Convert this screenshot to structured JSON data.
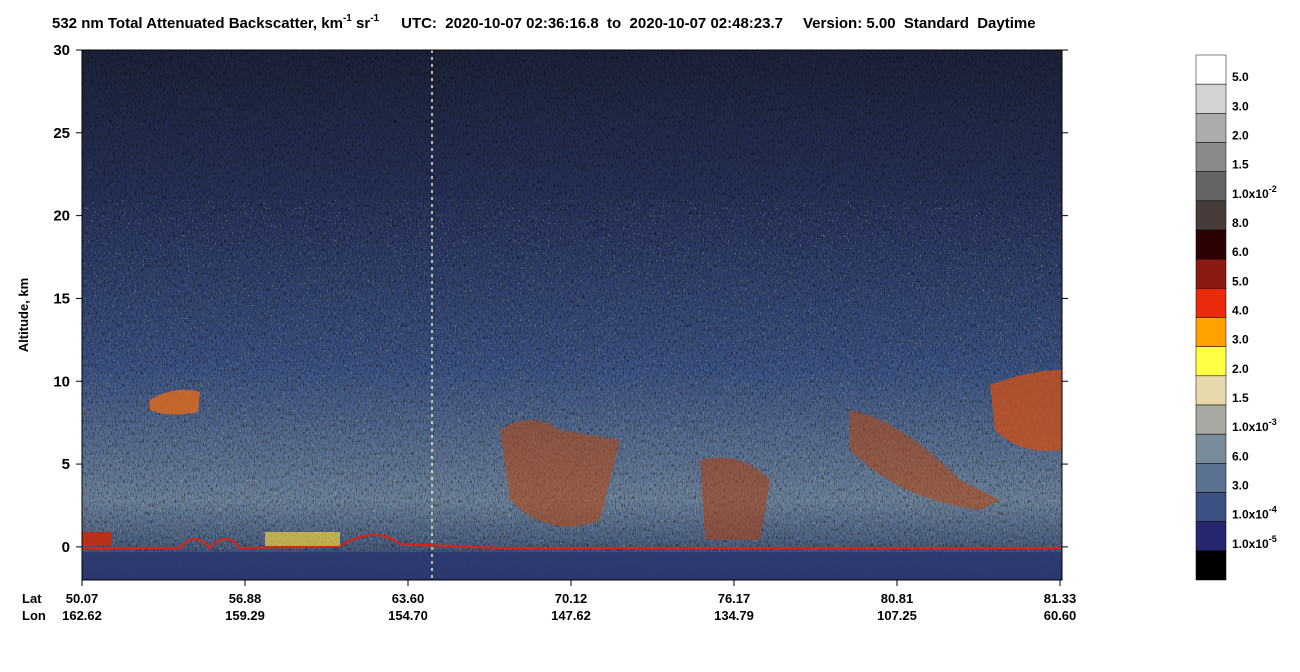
{
  "chart_data": {
    "type": "heatmap",
    "title": {
      "prefix": "532 nm Total Attenuated Backscatter, km",
      "exp1": "-1",
      "sr": " sr",
      "exp2": "-1",
      "utc": "UTC:  2020-10-07 02:36:16.8  to  2020-10-07 02:48:23.7",
      "version": "Version: 5.00  Standard  Daytime"
    },
    "y_label": "Altitude, km",
    "ylim": [
      -2,
      30
    ],
    "yticks": [
      0,
      5,
      10,
      15,
      20,
      25,
      30
    ],
    "x_rows": [
      {
        "name": "Lat",
        "labels": [
          "50.07",
          "56.88",
          "63.60",
          "70.12",
          "76.17",
          "80.81",
          "81.33"
        ]
      },
      {
        "name": "Lon",
        "labels": [
          "162.62",
          "159.29",
          "154.70",
          "147.62",
          "134.79",
          "107.25",
          "60.60"
        ]
      }
    ],
    "colorbar": {
      "colors": [
        "#ffffff",
        "#d3d3d3",
        "#acacac",
        "#8a8a8a",
        "#646464",
        "#483c3a",
        "#2e0202",
        "#8a1a12",
        "#ea2a0c",
        "#ffa200",
        "#ffff44",
        "#e8d9ad",
        "#a6a9a1",
        "#7a8b99",
        "#5b7191",
        "#3b5183",
        "#26276e",
        "#000000"
      ],
      "ticks": [
        {
          "text": "5.0"
        },
        {
          "text": "3.0"
        },
        {
          "text": "2.0"
        },
        {
          "text": "1.5"
        },
        {
          "text": "1.0x10",
          "exp": "-2"
        },
        {
          "text": "8.0"
        },
        {
          "text": "6.0"
        },
        {
          "text": "5.0"
        },
        {
          "text": "4.0"
        },
        {
          "text": "3.0"
        },
        {
          "text": "2.0"
        },
        {
          "text": "1.5"
        },
        {
          "text": "1.0x10",
          "exp": "-3"
        },
        {
          "text": "6.0"
        },
        {
          "text": "3.0"
        },
        {
          "text": "1.0x10",
          "exp": "-4"
        },
        {
          "text": "1.0x10",
          "exp": "-5"
        }
      ]
    }
  }
}
